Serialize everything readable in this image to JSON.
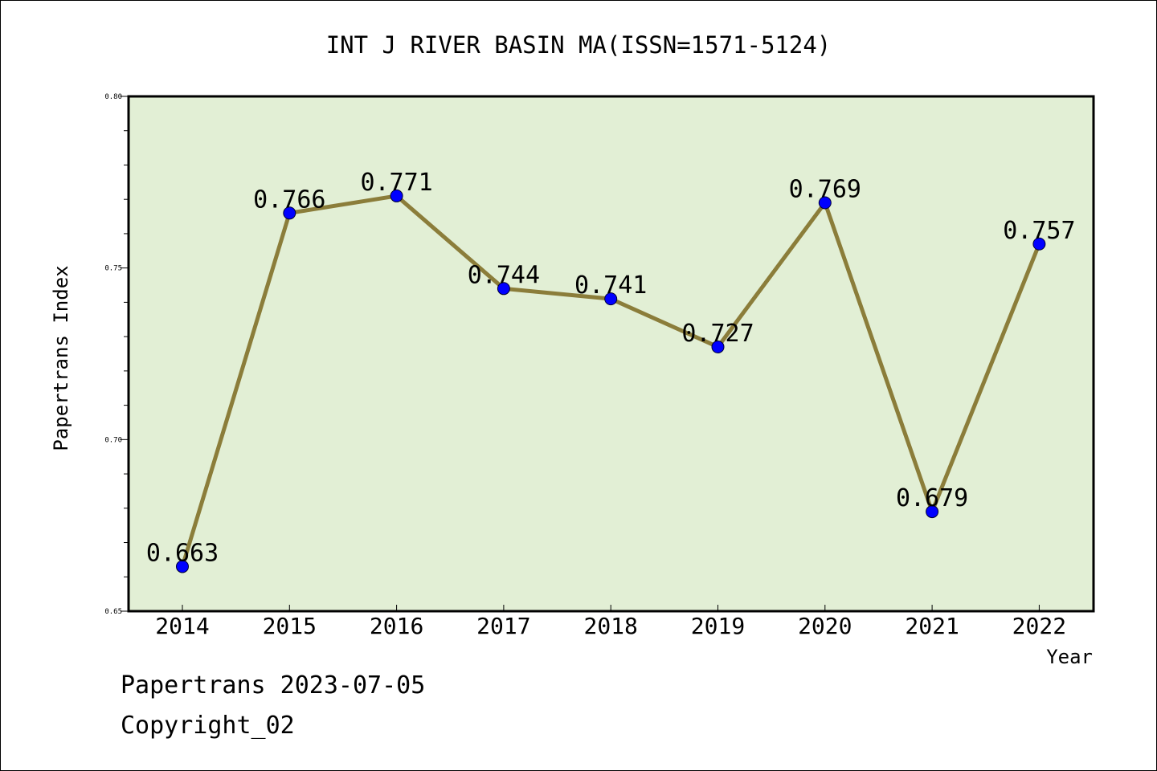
{
  "chart_data": {
    "type": "line",
    "title": "INT J RIVER BASIN MA(ISSN=1571-5124)",
    "xlabel": "Year",
    "ylabel": "Papertrans Index",
    "categories": [
      "2014",
      "2015",
      "2016",
      "2017",
      "2018",
      "2019",
      "2020",
      "2021",
      "2022"
    ],
    "series": [
      {
        "values": [
          0.663,
          0.766,
          0.771,
          0.744,
          0.741,
          0.727,
          0.769,
          0.679,
          0.757
        ],
        "labels": [
          "0.663",
          "0.766",
          "0.771",
          "0.744",
          "0.741",
          "0.727",
          "0.769",
          "0.679",
          "0.757"
        ]
      }
    ],
    "ylim": [
      0.65,
      0.8
    ],
    "yticks": [
      "0.65",
      "0.70",
      "0.75",
      "0.80"
    ],
    "grid": false,
    "legend": "none",
    "colors": {
      "plot_background": "#e2efd5",
      "line": "#8b7d3a",
      "marker": "#0000ff"
    }
  },
  "footer": {
    "line1": "Papertrans 2023-07-05",
    "line2": "Copyright_02"
  }
}
